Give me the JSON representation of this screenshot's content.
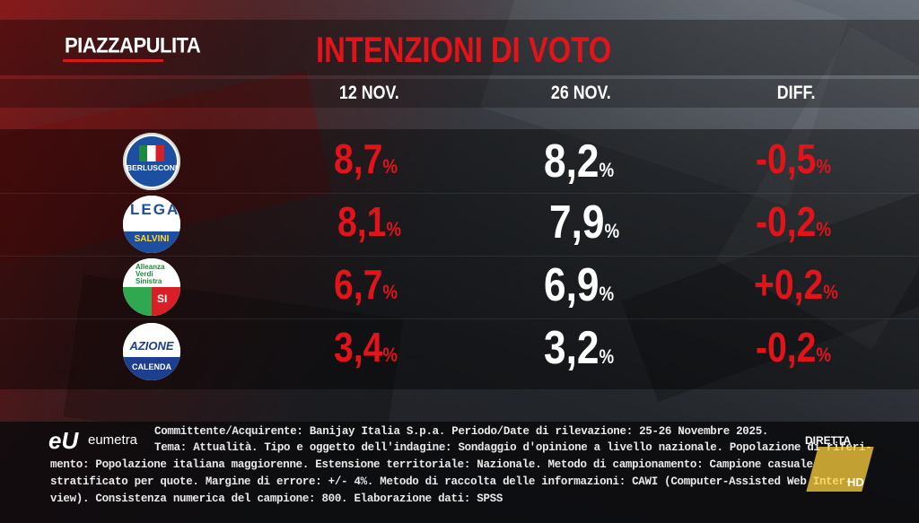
{
  "header": {
    "logo_text": "PIAZZAPULITA",
    "title": "INTENZIONI DI VOTO"
  },
  "chart_data": {
    "type": "table",
    "title": "INTENZIONI DI VOTO",
    "columns": [
      "12 NOV.",
      "26 NOV.",
      "DIFF."
    ],
    "rows": [
      {
        "party_logo": "forza-italia-berlusconi-presidente-logo",
        "nov12": "8,7",
        "nov26": "8,2",
        "diff": "-0,5"
      },
      {
        "party_logo": "lega-salvini-premier-logo",
        "nov12": "8,1",
        "nov26": "7,9",
        "diff": "-0,2"
      },
      {
        "party_logo": "alleanza-verdi-sinistra-logo",
        "nov12": "6,7",
        "nov26": "6,9",
        "diff": "+0,2"
      },
      {
        "party_logo": "azione-calenda-logo",
        "nov12": "3,4",
        "nov26": "3,2",
        "diff": "-0,2"
      }
    ],
    "unit": "%",
    "colors": {
      "nov12": "#e0141a",
      "nov26": "#ffffff",
      "diff": "#e0141a"
    }
  },
  "logos": {
    "fi": {
      "name": "BERLUSCONI"
    },
    "lega": {
      "top": "LEGA",
      "bottom": "SALVINI"
    },
    "avs": {
      "top": "Alleanza Verdi Sinistra",
      "right": "SI"
    },
    "azione": {
      "top": "AZIONE",
      "bottom": "CALENDA"
    }
  },
  "footer": {
    "brand": "eumetra",
    "notes": [
      "Committente/Acquirente: Banijay Italia S.p.a. Periodo/Date di rilevazione: 25-26 Novembre  2025.",
      "Tema: Attualità. Tipo e oggetto dell'indagine: Sondaggio d'opinione a livello nazionale. Popolazione di riferi-",
      "mento: Popolazione italiana maggiorenne. Estensione territoriale: Nazionale. Metodo di campionamento: Campione casuale",
      "stratificato per quote. Margine di errore: +/- 4%. Metodo di raccolta delle informazioni: CAWI (Computer-Assisted Web Inter-",
      "view). Consistenza numerica del campione: 800. Elaborazione dati: SPSS"
    ],
    "live_label": "DIRETTA",
    "hd_label": "HD"
  }
}
